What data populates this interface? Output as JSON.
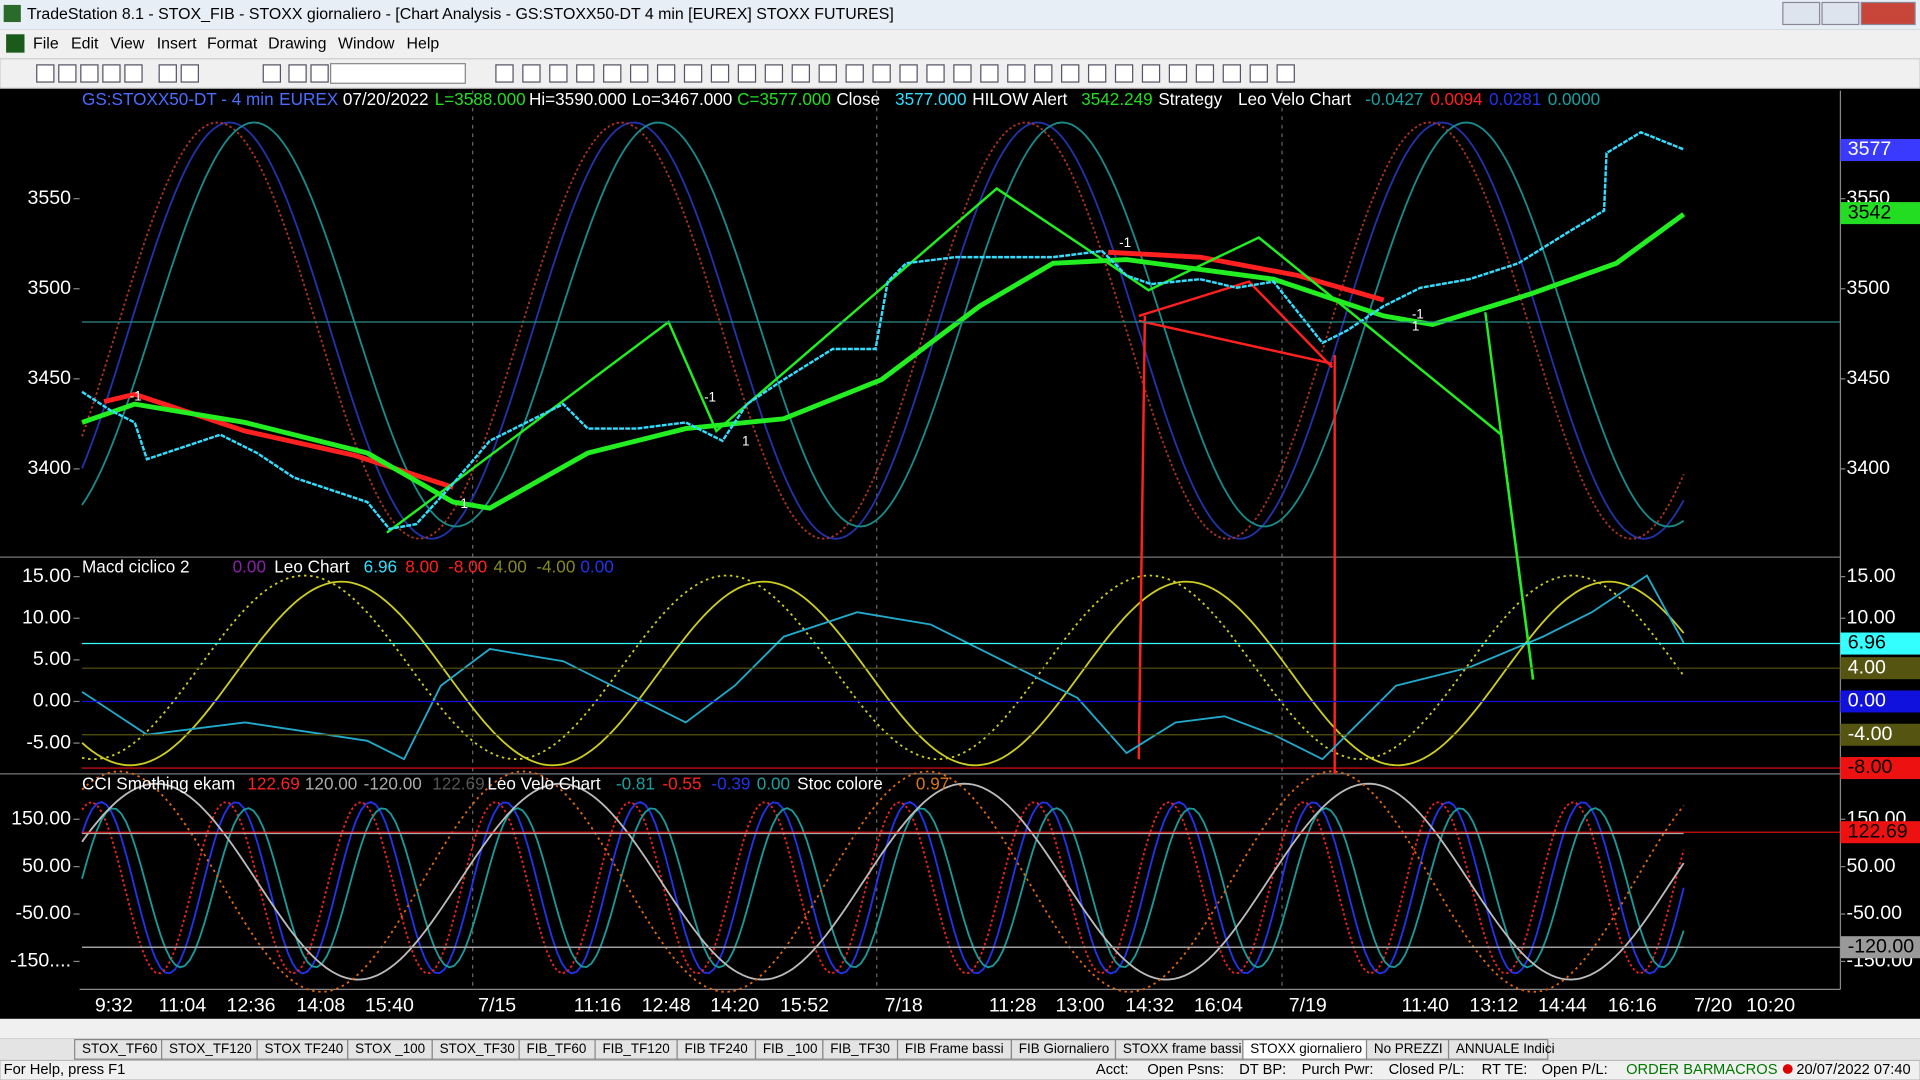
{
  "window": {
    "title": "TradeStation 8.1 - STOX_FIB - STOXX giornaliero - [Chart Analysis - GS:STOXX50-DT  4 min  [EUREX] STOXX FUTURES]",
    "menu": [
      "File",
      "Edit",
      "View",
      "Insert",
      "Format",
      "Drawing",
      "Window",
      "Help"
    ]
  },
  "chart": {
    "header": [
      {
        "text": "GS:STOXX50-DT - 4 min",
        "color": "#4a6cff"
      },
      {
        "text": "EUREX",
        "color": "#4a6cff"
      },
      {
        "text": "07/20/2022",
        "color": "#ffffff"
      },
      {
        "text": "L=3588.000",
        "color": "#22dd22"
      },
      {
        "text": "Hi=3590.000",
        "color": "#ffffff"
      },
      {
        "text": "Lo=3467.000",
        "color": "#ffffff"
      },
      {
        "text": "C=3577.000",
        "color": "#22dd22"
      },
      {
        "text": "Close",
        "color": "#ffffff"
      },
      {
        "text": "3577.000",
        "color": "#33ddff"
      },
      {
        "text": "HILOW Alert",
        "color": "#ffffff"
      },
      {
        "text": "3542.249",
        "color": "#22dd22"
      },
      {
        "text": "Strategy",
        "color": "#ffffff"
      },
      {
        "text": "Leo Velo Chart",
        "color": "#ffffff"
      },
      {
        "text": "-0.0427",
        "color": "#1aa0a0"
      },
      {
        "text": "0.0094",
        "color": "#ff2020"
      },
      {
        "text": "0.0281",
        "color": "#2233ee"
      },
      {
        "text": "0.0000",
        "color": "#1aa0a0"
      }
    ],
    "price": {
      "ylim": [
        3351,
        3610
      ],
      "yticks": [
        3550,
        3500,
        3450,
        3400
      ],
      "y2ticks": [
        3550,
        3500,
        3450,
        3400
      ],
      "badges": [
        {
          "value": 3577,
          "label": "3577",
          "color": "#3a3aff",
          "text_color": "#ffffff"
        },
        {
          "value": 3542,
          "label": "3542",
          "color": "#22dd22",
          "text_color": "#000000"
        }
      ],
      "markers": [
        "-1",
        "-1",
        "-1",
        "-1",
        "1",
        "1",
        "1",
        "1"
      ]
    },
    "macd": {
      "header": [
        {
          "text": "Macd ciclico 2",
          "color": "#ffffff"
        },
        {
          "text": "0.00",
          "color": "#8822aa"
        },
        {
          "text": "Leo Chart",
          "color": "#ffffff"
        },
        {
          "text": "6.96",
          "color": "#33ddff"
        },
        {
          "text": "8.00",
          "color": "#ff2020"
        },
        {
          "text": "-8.00",
          "color": "#ff2020"
        },
        {
          "text": "4.00",
          "color": "#888822"
        },
        {
          "text": "-4.00",
          "color": "#888822"
        },
        {
          "text": "0.00",
          "color": "#2233ee"
        }
      ],
      "ylim": [
        -8.7,
        16.9
      ],
      "yticks": [
        {
          "value": 15,
          "label": "15.00"
        },
        {
          "value": 10,
          "label": "10.00"
        },
        {
          "value": 5,
          "label": "5.00"
        },
        {
          "value": 0,
          "label": "0.00"
        },
        {
          "value": -5,
          "label": "-5.00"
        }
      ],
      "y2ticks": [
        {
          "value": 15,
          "label": "15.00"
        },
        {
          "value": 10,
          "label": "10.00"
        }
      ],
      "badges": [
        {
          "value": 6.96,
          "label": "6.96",
          "color": "#33ffff",
          "text_color": "#000000"
        },
        {
          "value": 4,
          "label": "4.00",
          "color": "#555511",
          "text_color": "#ffffff"
        },
        {
          "value": 0,
          "label": "0.00",
          "color": "#1111dd",
          "text_color": "#ffffff"
        },
        {
          "value": -4,
          "label": "-4.00",
          "color": "#555511",
          "text_color": "#ffffff"
        },
        {
          "value": -8,
          "label": "-8.00",
          "color": "#ee1111",
          "text_color": "#000000"
        }
      ]
    },
    "cci": {
      "header": [
        {
          "text": "CCI Smothing ekam",
          "color": "#ffffff"
        },
        {
          "text": "122.69",
          "color": "#ff2020"
        },
        {
          "text": "120.00",
          "color": "#aaaaaa"
        },
        {
          "text": "-120.00",
          "color": "#aaaaaa"
        },
        {
          "text": "122.69",
          "color": "#555555"
        },
        {
          "text": "Leo Velo Chart",
          "color": "#ffffff"
        },
        {
          "text": "-0.81",
          "color": "#1aa0a0"
        },
        {
          "text": "-0.55",
          "color": "#ff2020"
        },
        {
          "text": "-0.39",
          "color": "#2233ee"
        },
        {
          "text": "0.00",
          "color": "#1aa0a0"
        },
        {
          "text": "Stoc colore",
          "color": "#ffffff"
        },
        {
          "text": "0.97",
          "color": "#dd7711"
        }
      ],
      "ylim": [
        -209,
        238
      ],
      "yticks": [
        {
          "value": 150,
          "label": "150.00"
        },
        {
          "value": 50,
          "label": "50.00"
        },
        {
          "value": -50,
          "label": "-50.00"
        },
        {
          "value": -150,
          "label": "-150...."
        }
      ],
      "y2ticks": [
        {
          "value": 150,
          "label": "150.00"
        },
        {
          "value": 50,
          "label": "50.00"
        },
        {
          "value": -50,
          "label": "-50.00"
        },
        {
          "value": -150,
          "label": "-150.00"
        }
      ],
      "badges": [
        {
          "value": 122.69,
          "label": "122.69",
          "color": "#ee1111",
          "text_color": "#000000"
        },
        {
          "value": -120,
          "label": "-120.00",
          "color": "#999999",
          "text_color": "#000000"
        }
      ]
    },
    "time_labels": [
      "9:32",
      "11:04",
      "12:36",
      "14:08",
      "15:40",
      "7/15",
      "11:16",
      "12:48",
      "14:20",
      "15:52",
      "7/18",
      "11:28",
      "13:00",
      "14:32",
      "16:04",
      "7/19",
      "11:40",
      "13:12",
      "14:44",
      "16:16",
      "7/20",
      "10:20"
    ]
  },
  "tabs": [
    "STOX_TF60",
    "STOX_TF120",
    "STOX TF240",
    "STOX _100",
    "STOX_TF30",
    "FIB_TF60",
    "FIB_TF120",
    "FIB TF240",
    "FIB _100",
    "FIB_TF30",
    "FIB Frame bassi",
    "FIB Giornaliero",
    "STOXX frame bassi",
    "STOXX giornaliero",
    "No PREZZI",
    "ANNUALE Indici"
  ],
  "status": {
    "help": "For Help, press F1",
    "fields": [
      "Acct:",
      "Open Psns:",
      "DT BP:",
      "Purch Pwr:",
      "Closed P/L:",
      "RT TE:",
      "Open P/L:"
    ],
    "order_bar": "ORDER BAR",
    "macros": "MACROS",
    "datetime": "20/07/2022 07:40"
  }
}
